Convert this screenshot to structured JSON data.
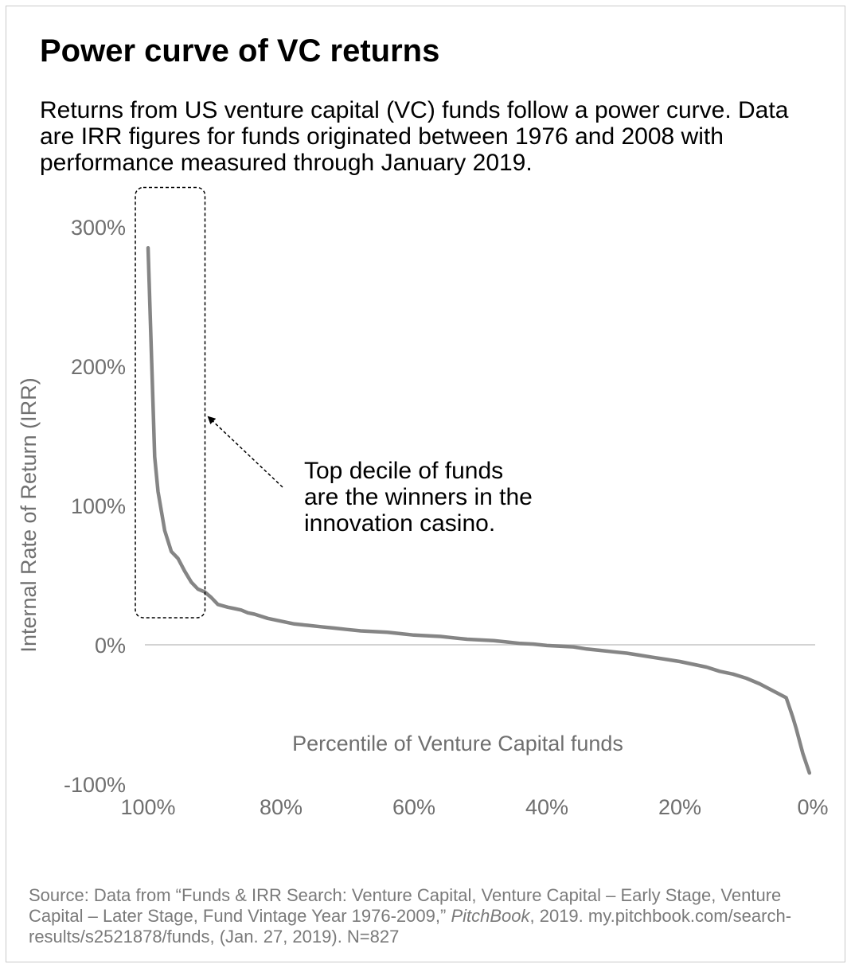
{
  "title": "Power curve of VC returns",
  "subtitle": "Returns from US venture capital (VC) funds follow a power curve. Data are IRR figures for funds originated between 1976 and 2008 with performance measured through January 2019.",
  "source": {
    "before": "Source: Data from “Funds & IRR Search: Venture Capital, Venture Capital – Early Stage, Venture Capital – Later Stage, Fund Vintage Year 1976-2009,” ",
    "italic": "PitchBook",
    "after": ", 2019. my.pitchbook.com/search-results/s2521878/funds, (Jan. 27, 2019). N=827"
  },
  "colors": {
    "line": "#858585",
    "zero_line": "#d3d3d3",
    "axis_text": "#6f6f6f",
    "text": "#000000"
  },
  "chart_data": {
    "type": "line",
    "xlabel": "Percentile of Venture Capital funds",
    "ylabel": "Internal Rate of Return (IRR)",
    "xlim": [
      100,
      0
    ],
    "ylim": [
      -100,
      300
    ],
    "x_ticks": [
      100,
      80,
      60,
      40,
      20,
      0
    ],
    "x_tick_labels": [
      "100%",
      "80%",
      "60%",
      "40%",
      "20%",
      "0%"
    ],
    "y_ticks": [
      300,
      200,
      100,
      0,
      -100
    ],
    "y_tick_labels": [
      "300%",
      "200%",
      "100%",
      "0%",
      "-100%"
    ],
    "grid": false,
    "reference_line_y": 0,
    "series": [
      {
        "x": [
          100,
          99,
          98.5,
          97.5,
          96.5,
          95.5,
          94.5,
          93.5,
          92.5,
          91.5,
          90.5,
          89.5,
          88,
          87,
          86,
          85,
          84,
          82,
          80,
          78,
          76,
          74,
          72,
          70,
          68,
          66,
          64,
          62,
          60,
          58,
          56,
          54,
          52,
          50,
          48,
          46,
          44,
          42,
          40,
          38,
          36,
          34,
          32,
          30,
          28,
          26,
          24,
          22,
          20,
          18,
          16,
          14,
          12,
          10,
          8,
          6,
          4,
          3.5,
          3,
          2.5,
          1.5,
          0.5
        ],
        "y": [
          285,
          135,
          110,
          82,
          67,
          62,
          53,
          45,
          40,
          38,
          34,
          29,
          27,
          26,
          25,
          23,
          22,
          19,
          17,
          15,
          14,
          13,
          12,
          11,
          10,
          9.5,
          9,
          8,
          7,
          6.5,
          6,
          5,
          4,
          3.5,
          3,
          2,
          1,
          0.5,
          -0.5,
          -1,
          -1.5,
          -3,
          -4,
          -5,
          -6,
          -7.5,
          -9,
          -10.5,
          -12,
          -14,
          -16,
          -19,
          -21,
          -24,
          -28,
          -33,
          -38,
          -45,
          -52,
          -60,
          -78,
          -92
        ]
      }
    ],
    "annotations": [
      {
        "text_lines": [
          "Top decile of funds",
          "are the winners in the",
          "innovation casino."
        ],
        "highlight_x_range": [
          100,
          90
        ],
        "highlight_y_range": [
          20,
          310
        ]
      }
    ]
  }
}
